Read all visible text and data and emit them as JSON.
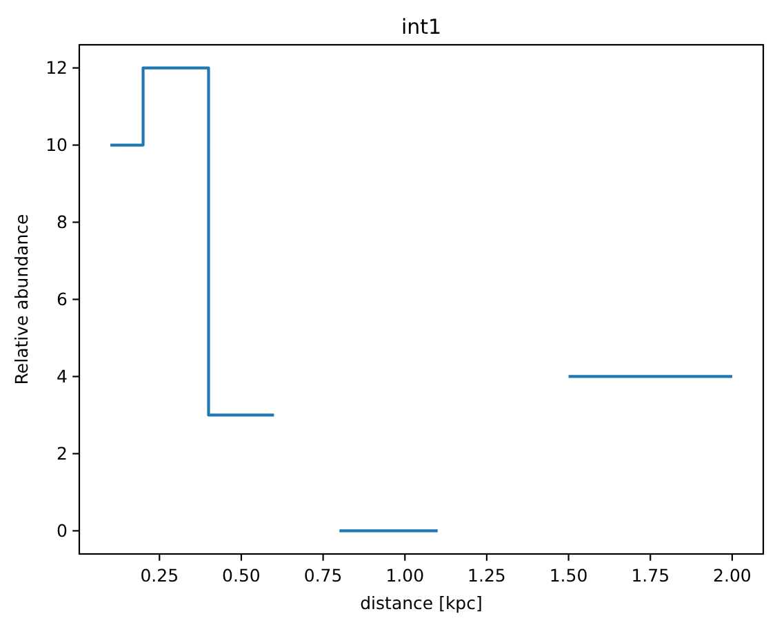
{
  "chart_data": {
    "type": "step",
    "title": "int1",
    "xlabel": "distance [kpc]",
    "ylabel": "Relative abundance",
    "x": [
      0.1,
      0.2,
      0.4,
      0.6,
      0.8,
      1.1,
      1.5,
      2.0
    ],
    "values": [
      10,
      12,
      3,
      null,
      0,
      null,
      4,
      4
    ],
    "color": "#1f77b4",
    "xlim": [
      0.005,
      2.095
    ],
    "xticks": [
      0.25,
      {
        "value": 0.5,
        "label": "0.50"
      },
      0.75,
      {
        "value": 1.0,
        "label": "1.00"
      },
      1.25,
      {
        "value": 1.5,
        "label": "1.50"
      },
      1.75,
      {
        "value": 2.0,
        "label": "2.00"
      }
    ],
    "ylim": [
      -0.6,
      12.6
    ],
    "yticks": [
      0,
      2,
      4,
      6,
      8,
      10,
      12
    ],
    "grid": false
  }
}
